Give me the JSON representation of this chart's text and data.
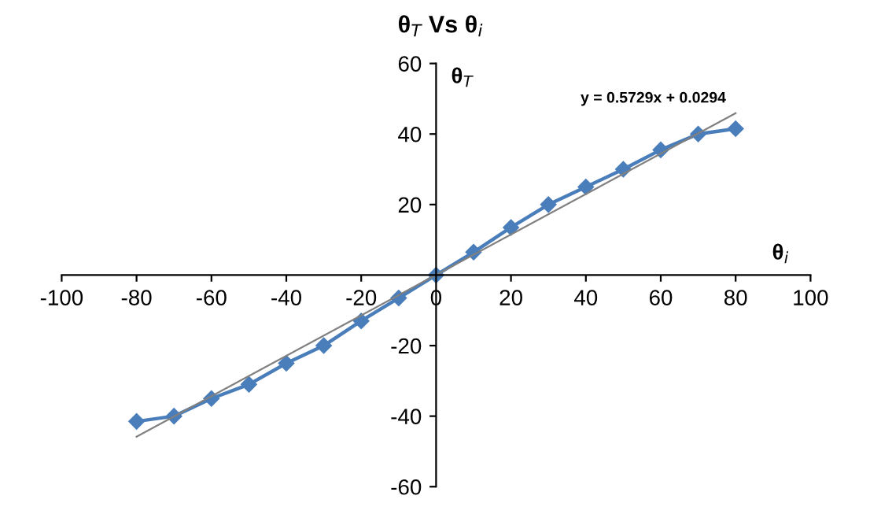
{
  "chart_data": {
    "type": "line",
    "title": "θ$_{T}$ Vs θ$_{i}$",
    "xlabel": "θ$_{i}$",
    "ylabel": "θ$_{T}$",
    "annotations": [
      "y = 0.5729x + 0.0294"
    ],
    "x": [
      -80,
      -70,
      -60,
      -50,
      -40,
      -30,
      -20,
      -10,
      0,
      10,
      20,
      30,
      40,
      50,
      60,
      70,
      80
    ],
    "series": [
      {
        "color": "#4a7ebb",
        "marker": "diamond",
        "values": [
          -41.5,
          -40,
          -35,
          -31,
          -25,
          -20,
          -13,
          -6.5,
          0,
          6.5,
          13.5,
          20,
          25,
          30,
          35.5,
          40,
          41.5
        ]
      },
      {
        "color": "#808080",
        "marker": "none",
        "x": [
          -80,
          80
        ],
        "values": [
          -45.8,
          45.9
        ]
      }
    ],
    "xlim": [
      -100,
      100
    ],
    "xticks": [
      -100,
      -80,
      -60,
      -40,
      -20,
      0,
      20,
      40,
      60,
      80,
      100
    ],
    "ylim": [
      -60,
      60
    ],
    "yticks": [
      -60,
      -40,
      -20,
      {
        "value": 0,
        "label": null
      },
      20,
      40,
      60
    ],
    "grid": false
  }
}
